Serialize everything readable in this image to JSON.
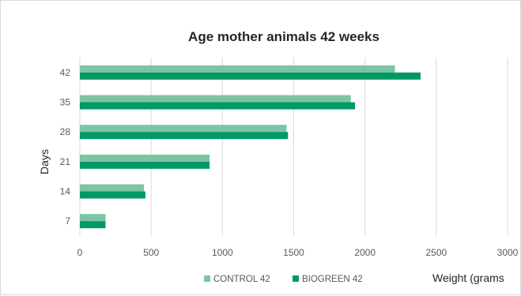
{
  "chart_data": {
    "type": "bar",
    "orientation": "horizontal",
    "title": "Age mother animals 42 weeks",
    "xlabel": "Weight (grams",
    "ylabel": "Days",
    "categories": [
      "7",
      "14",
      "21",
      "28",
      "35",
      "42"
    ],
    "series": [
      {
        "name": "CONTROL 42",
        "color": "#7dc4a5",
        "values": [
          180,
          450,
          910,
          1450,
          1900,
          2210
        ]
      },
      {
        "name": "BIOGREEN 42",
        "color": "#009966",
        "values": [
          180,
          460,
          910,
          1460,
          1930,
          2390
        ]
      }
    ],
    "x_ticks": [
      "0",
      "500",
      "1000",
      "1500",
      "2000",
      "2500",
      "3000"
    ],
    "xlim": [
      0,
      3000
    ],
    "grid": true,
    "legend_position": "bottom"
  }
}
